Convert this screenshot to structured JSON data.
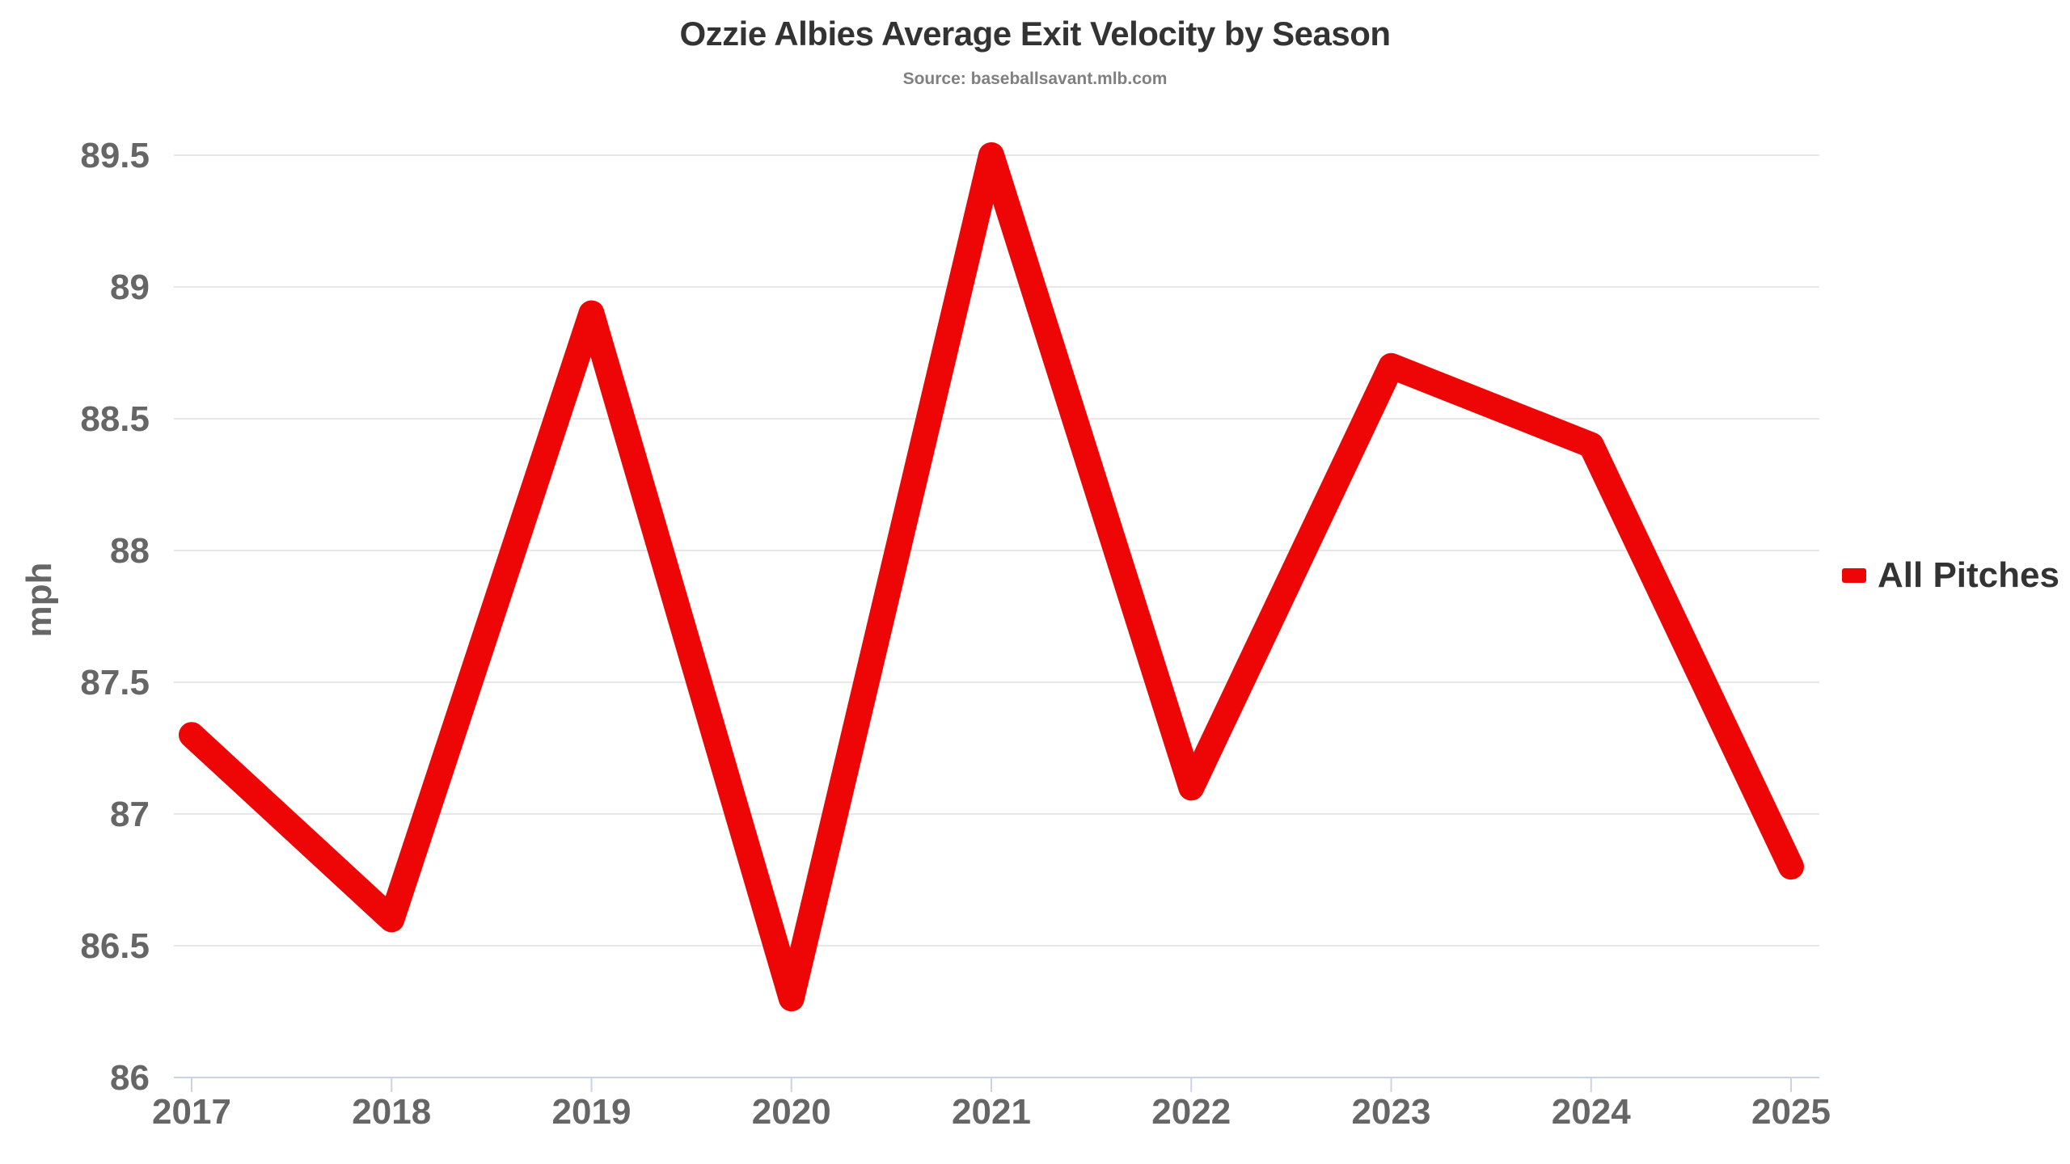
{
  "header": {
    "title": "Ozzie Albies Average Exit Velocity by Season",
    "source": "Source: baseballsavant.mlb.com"
  },
  "legend": {
    "items": [
      {
        "label": "All Pitches",
        "color": "#ee0606"
      }
    ]
  },
  "chart_data": {
    "type": "line",
    "title": "Ozzie Albies Average Exit Velocity by Season",
    "subtitle": "Source: baseballsavant.mlb.com",
    "categories": [
      "2017",
      "2018",
      "2019",
      "2020",
      "2021",
      "2022",
      "2023",
      "2024",
      "2025"
    ],
    "series": [
      {
        "name": "All Pitches",
        "color": "#ee0606",
        "values": [
          87.3,
          86.6,
          88.9,
          86.3,
          89.5,
          87.1,
          88.7,
          88.4,
          86.8
        ]
      }
    ],
    "xlabel": "",
    "ylabel": "mph",
    "ylim": [
      86,
      89.5
    ],
    "ytick_step": 0.5,
    "grid": true,
    "legend_position": "right-middle",
    "colors": {
      "grid_line": "#e8e8e8",
      "axis_line": "#c8d4e4",
      "tick_label": "#666666",
      "axis_title": "#666666",
      "title": "#333333",
      "subtitle": "#808080",
      "background": "#ffffff"
    }
  }
}
